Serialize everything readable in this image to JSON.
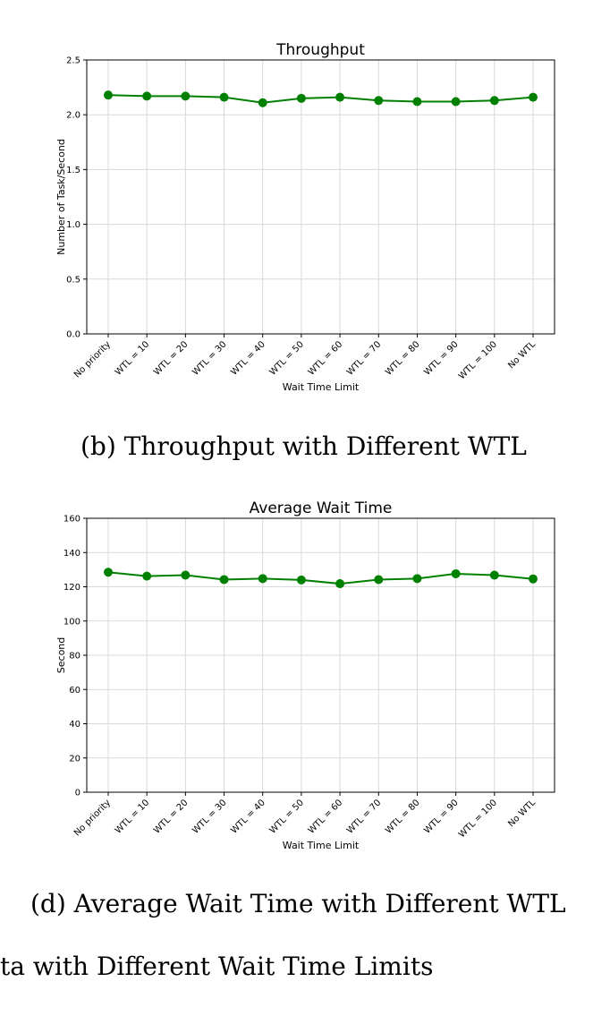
{
  "captions": {
    "b": "(b) Throughput with Different WTL",
    "d": "(d) Average Wait Time with Different WTL",
    "main": "ta with Different Wait Time Limits"
  },
  "chart_data": [
    {
      "type": "line",
      "title": "Throughput",
      "xlabel": "Wait Time Limit",
      "ylabel": "Number of Task/Second",
      "categories": [
        "No priority",
        "WTL = 10",
        "WTL = 20",
        "WTL = 30",
        "WTL = 40",
        "WTL = 50",
        "WTL = 60",
        "WTL = 70",
        "WTL = 80",
        "WTL = 90",
        "WTL = 100",
        "No WTL"
      ],
      "values": [
        2.18,
        2.17,
        2.17,
        2.16,
        2.11,
        2.15,
        2.16,
        2.13,
        2.12,
        2.12,
        2.13,
        2.16
      ],
      "ylim": [
        0,
        2.5
      ],
      "yticks": [
        "0.0",
        "0.5",
        "1.0",
        "1.5",
        "2.0",
        "2.5"
      ],
      "ytick_values": [
        0,
        0.5,
        1.0,
        1.5,
        2.0,
        2.5
      ],
      "grid": true,
      "color": "#008000"
    },
    {
      "type": "line",
      "title": "Average Wait Time",
      "xlabel": "Wait Time Limit",
      "ylabel": "Second",
      "categories": [
        "No priority",
        "WTL = 10",
        "WTL = 20",
        "WTL = 30",
        "WTL = 40",
        "WTL = 50",
        "WTL = 60",
        "WTL = 70",
        "WTL = 80",
        "WTL = 90",
        "WTL = 100",
        "No WTL"
      ],
      "values": [
        128.5,
        126.2,
        126.8,
        124.2,
        124.8,
        124.0,
        121.8,
        124.2,
        124.8,
        127.6,
        126.8,
        124.6
      ],
      "ylim": [
        0,
        160
      ],
      "yticks": [
        "0",
        "20",
        "40",
        "60",
        "80",
        "100",
        "120",
        "140",
        "160"
      ],
      "ytick_values": [
        0,
        20,
        40,
        60,
        80,
        100,
        120,
        140,
        160
      ],
      "grid": true,
      "color": "#008000"
    }
  ]
}
